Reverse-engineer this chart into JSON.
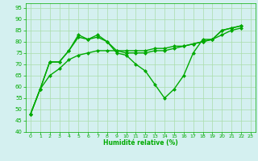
{
  "line1": [
    48,
    59,
    71,
    71,
    76,
    83,
    81,
    83,
    80,
    75,
    74,
    70,
    67,
    61,
    55,
    59,
    65,
    75,
    81,
    81,
    85,
    86,
    87
  ],
  "line2": [
    48,
    59,
    71,
    71,
    76,
    82,
    81,
    82,
    80,
    76,
    75,
    75,
    75,
    76,
    76,
    77,
    78,
    79,
    80,
    81,
    85,
    86,
    87
  ],
  "line3": [
    48,
    59,
    65,
    68,
    72,
    74,
    75,
    76,
    76,
    76,
    76,
    76,
    76,
    77,
    77,
    78,
    78,
    79,
    80,
    81,
    83,
    85,
    86
  ],
  "x": [
    0,
    1,
    2,
    3,
    4,
    5,
    6,
    7,
    8,
    9,
    10,
    11,
    12,
    13,
    14,
    15,
    16,
    17,
    18,
    19,
    20,
    21,
    22
  ],
  "xlabel": "Humidité relative (%)",
  "ylim": [
    40,
    97
  ],
  "yticks": [
    40,
    45,
    50,
    55,
    60,
    65,
    70,
    75,
    80,
    85,
    90,
    95
  ],
  "xticks": [
    0,
    1,
    2,
    3,
    4,
    5,
    6,
    7,
    8,
    9,
    10,
    11,
    12,
    13,
    14,
    15,
    16,
    17,
    18,
    19,
    20,
    21,
    22,
    23
  ],
  "line_color": "#00aa00",
  "bg_color": "#d4f0f0",
  "grid_color": "#aaddaa",
  "marker": "D",
  "marker_size": 2.5,
  "linewidth": 1.0
}
